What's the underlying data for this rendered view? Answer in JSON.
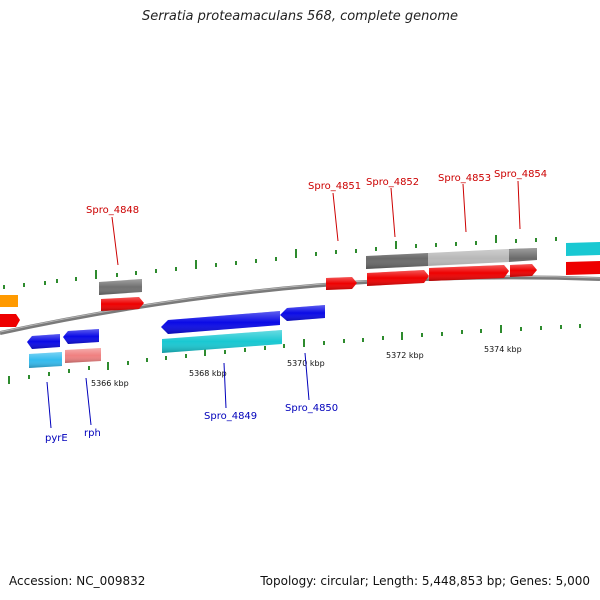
{
  "title": "Serratia proteamaculans 568, complete genome",
  "footer": {
    "accession": "Accession: NC_009832",
    "summary": "Topology: circular; Length: 5,448,853 bp; Genes: 5,000"
  },
  "colors": {
    "backbone": "#7a7a7a",
    "tick": "#2e8b2e",
    "label_top": "#cc0000",
    "label_bottom": "#0000bb"
  },
  "axis": {
    "tick_labels": [
      "5366 kbp",
      "5368 kbp",
      "5370 kbp",
      "5372 kbp",
      "5374 kbp"
    ]
  },
  "gene_labels_top": [
    "Spro_4848",
    "Spro_4851",
    "Spro_4852",
    "Spro_4853",
    "Spro_4854"
  ],
  "gene_labels_bottom": [
    "pyrE",
    "rph",
    "Spro_4849",
    "Spro_4850"
  ]
}
